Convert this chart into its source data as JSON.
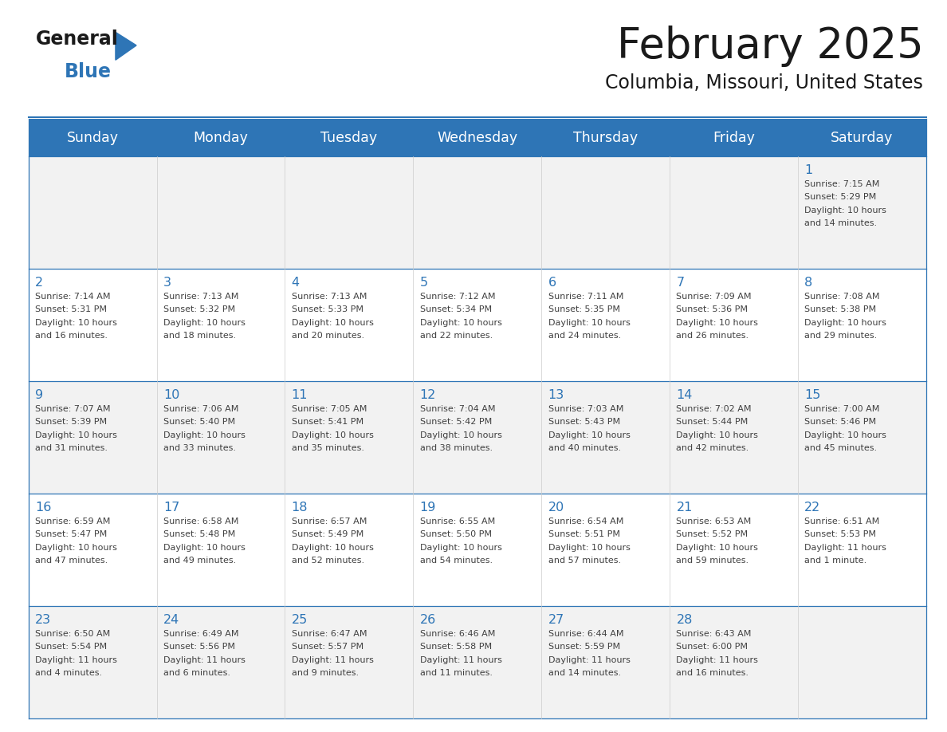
{
  "title": "February 2025",
  "subtitle": "Columbia, Missouri, United States",
  "days_of_week": [
    "Sunday",
    "Monday",
    "Tuesday",
    "Wednesday",
    "Thursday",
    "Friday",
    "Saturday"
  ],
  "header_bg": "#2E75B6",
  "header_text": "#FFFFFF",
  "row_bg_odd": "#F2F2F2",
  "row_bg_even": "#FFFFFF",
  "border_color": "#2E75B6",
  "day_number_color": "#2E75B6",
  "text_color": "#404040",
  "title_color": "#1a1a1a",
  "logo_general_color": "#1a1a1a",
  "logo_blue_color": "#2E75B6",
  "logo_triangle_color": "#2E75B6",
  "calendar_data": [
    {
      "day": 1,
      "row": 0,
      "col": 6,
      "sunrise": "7:15 AM",
      "sunset": "5:29 PM",
      "daylight_line1": "Daylight: 10 hours",
      "daylight_line2": "and 14 minutes."
    },
    {
      "day": 2,
      "row": 1,
      "col": 0,
      "sunrise": "7:14 AM",
      "sunset": "5:31 PM",
      "daylight_line1": "Daylight: 10 hours",
      "daylight_line2": "and 16 minutes."
    },
    {
      "day": 3,
      "row": 1,
      "col": 1,
      "sunrise": "7:13 AM",
      "sunset": "5:32 PM",
      "daylight_line1": "Daylight: 10 hours",
      "daylight_line2": "and 18 minutes."
    },
    {
      "day": 4,
      "row": 1,
      "col": 2,
      "sunrise": "7:13 AM",
      "sunset": "5:33 PM",
      "daylight_line1": "Daylight: 10 hours",
      "daylight_line2": "and 20 minutes."
    },
    {
      "day": 5,
      "row": 1,
      "col": 3,
      "sunrise": "7:12 AM",
      "sunset": "5:34 PM",
      "daylight_line1": "Daylight: 10 hours",
      "daylight_line2": "and 22 minutes."
    },
    {
      "day": 6,
      "row": 1,
      "col": 4,
      "sunrise": "7:11 AM",
      "sunset": "5:35 PM",
      "daylight_line1": "Daylight: 10 hours",
      "daylight_line2": "and 24 minutes."
    },
    {
      "day": 7,
      "row": 1,
      "col": 5,
      "sunrise": "7:09 AM",
      "sunset": "5:36 PM",
      "daylight_line1": "Daylight: 10 hours",
      "daylight_line2": "and 26 minutes."
    },
    {
      "day": 8,
      "row": 1,
      "col": 6,
      "sunrise": "7:08 AM",
      "sunset": "5:38 PM",
      "daylight_line1": "Daylight: 10 hours",
      "daylight_line2": "and 29 minutes."
    },
    {
      "day": 9,
      "row": 2,
      "col": 0,
      "sunrise": "7:07 AM",
      "sunset": "5:39 PM",
      "daylight_line1": "Daylight: 10 hours",
      "daylight_line2": "and 31 minutes."
    },
    {
      "day": 10,
      "row": 2,
      "col": 1,
      "sunrise": "7:06 AM",
      "sunset": "5:40 PM",
      "daylight_line1": "Daylight: 10 hours",
      "daylight_line2": "and 33 minutes."
    },
    {
      "day": 11,
      "row": 2,
      "col": 2,
      "sunrise": "7:05 AM",
      "sunset": "5:41 PM",
      "daylight_line1": "Daylight: 10 hours",
      "daylight_line2": "and 35 minutes."
    },
    {
      "day": 12,
      "row": 2,
      "col": 3,
      "sunrise": "7:04 AM",
      "sunset": "5:42 PM",
      "daylight_line1": "Daylight: 10 hours",
      "daylight_line2": "and 38 minutes."
    },
    {
      "day": 13,
      "row": 2,
      "col": 4,
      "sunrise": "7:03 AM",
      "sunset": "5:43 PM",
      "daylight_line1": "Daylight: 10 hours",
      "daylight_line2": "and 40 minutes."
    },
    {
      "day": 14,
      "row": 2,
      "col": 5,
      "sunrise": "7:02 AM",
      "sunset": "5:44 PM",
      "daylight_line1": "Daylight: 10 hours",
      "daylight_line2": "and 42 minutes."
    },
    {
      "day": 15,
      "row": 2,
      "col": 6,
      "sunrise": "7:00 AM",
      "sunset": "5:46 PM",
      "daylight_line1": "Daylight: 10 hours",
      "daylight_line2": "and 45 minutes."
    },
    {
      "day": 16,
      "row": 3,
      "col": 0,
      "sunrise": "6:59 AM",
      "sunset": "5:47 PM",
      "daylight_line1": "Daylight: 10 hours",
      "daylight_line2": "and 47 minutes."
    },
    {
      "day": 17,
      "row": 3,
      "col": 1,
      "sunrise": "6:58 AM",
      "sunset": "5:48 PM",
      "daylight_line1": "Daylight: 10 hours",
      "daylight_line2": "and 49 minutes."
    },
    {
      "day": 18,
      "row": 3,
      "col": 2,
      "sunrise": "6:57 AM",
      "sunset": "5:49 PM",
      "daylight_line1": "Daylight: 10 hours",
      "daylight_line2": "and 52 minutes."
    },
    {
      "day": 19,
      "row": 3,
      "col": 3,
      "sunrise": "6:55 AM",
      "sunset": "5:50 PM",
      "daylight_line1": "Daylight: 10 hours",
      "daylight_line2": "and 54 minutes."
    },
    {
      "day": 20,
      "row": 3,
      "col": 4,
      "sunrise": "6:54 AM",
      "sunset": "5:51 PM",
      "daylight_line1": "Daylight: 10 hours",
      "daylight_line2": "and 57 minutes."
    },
    {
      "day": 21,
      "row": 3,
      "col": 5,
      "sunrise": "6:53 AM",
      "sunset": "5:52 PM",
      "daylight_line1": "Daylight: 10 hours",
      "daylight_line2": "and 59 minutes."
    },
    {
      "day": 22,
      "row": 3,
      "col": 6,
      "sunrise": "6:51 AM",
      "sunset": "5:53 PM",
      "daylight_line1": "Daylight: 11 hours",
      "daylight_line2": "and 1 minute."
    },
    {
      "day": 23,
      "row": 4,
      "col": 0,
      "sunrise": "6:50 AM",
      "sunset": "5:54 PM",
      "daylight_line1": "Daylight: 11 hours",
      "daylight_line2": "and 4 minutes."
    },
    {
      "day": 24,
      "row": 4,
      "col": 1,
      "sunrise": "6:49 AM",
      "sunset": "5:56 PM",
      "daylight_line1": "Daylight: 11 hours",
      "daylight_line2": "and 6 minutes."
    },
    {
      "day": 25,
      "row": 4,
      "col": 2,
      "sunrise": "6:47 AM",
      "sunset": "5:57 PM",
      "daylight_line1": "Daylight: 11 hours",
      "daylight_line2": "and 9 minutes."
    },
    {
      "day": 26,
      "row": 4,
      "col": 3,
      "sunrise": "6:46 AM",
      "sunset": "5:58 PM",
      "daylight_line1": "Daylight: 11 hours",
      "daylight_line2": "and 11 minutes."
    },
    {
      "day": 27,
      "row": 4,
      "col": 4,
      "sunrise": "6:44 AM",
      "sunset": "5:59 PM",
      "daylight_line1": "Daylight: 11 hours",
      "daylight_line2": "and 14 minutes."
    },
    {
      "day": 28,
      "row": 4,
      "col": 5,
      "sunrise": "6:43 AM",
      "sunset": "6:00 PM",
      "daylight_line1": "Daylight: 11 hours",
      "daylight_line2": "and 16 minutes."
    }
  ],
  "num_rows": 5,
  "num_cols": 7,
  "figsize": [
    11.88,
    9.18
  ],
  "dpi": 100
}
